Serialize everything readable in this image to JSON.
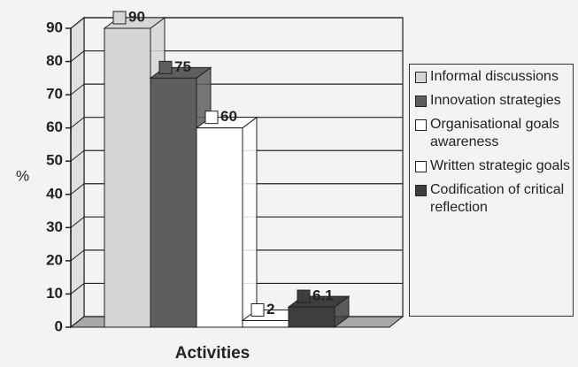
{
  "chart_data": {
    "type": "bar3d",
    "xlabel": "Activities",
    "ylabel": "%",
    "series": [
      {
        "name": "Informal discussions",
        "color": "#d6d6d6",
        "values": [
          90
        ]
      },
      {
        "name": "Innovation strategies",
        "color": "#5e5e5e",
        "values": [
          75
        ]
      },
      {
        "name": "Organisational goals awareness",
        "color": "#ffffff",
        "values": [
          60
        ]
      },
      {
        "name": "Written strategic goals",
        "color": "#ffffff",
        "values": [
          2
        ]
      },
      {
        "name": "Codification of critical reflection",
        "color": "#3e3e3e",
        "values": [
          6.1
        ]
      }
    ],
    "ylim": [
      0,
      90
    ],
    "yticks": [
      0,
      10,
      20,
      30,
      40,
      50,
      60,
      70,
      80,
      90
    ],
    "grid": true,
    "legend": "right"
  }
}
